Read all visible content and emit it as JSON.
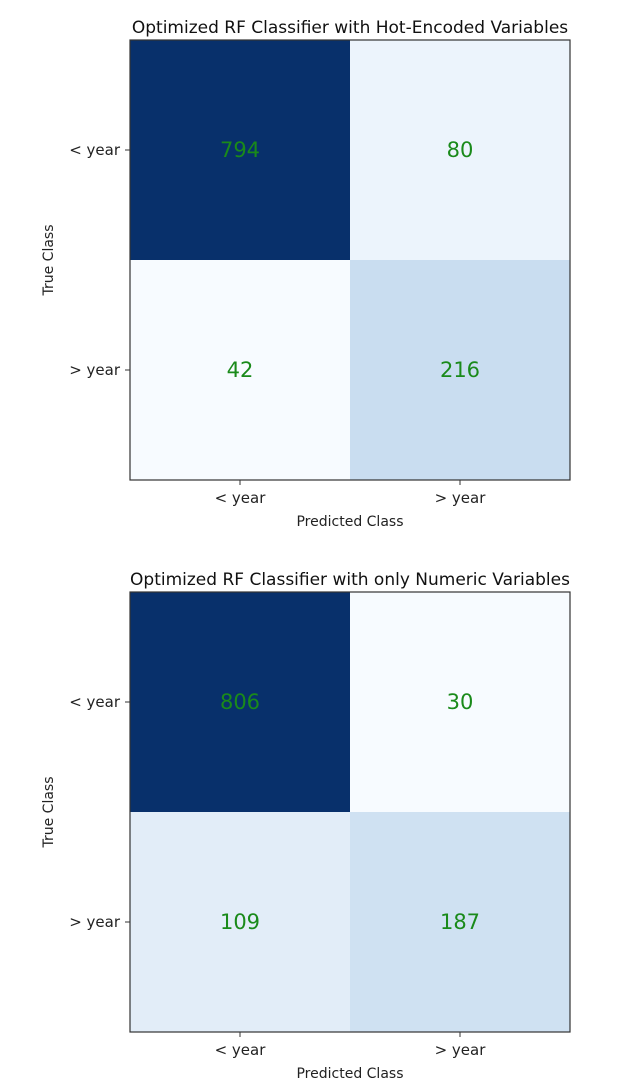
{
  "chart_data": [
    {
      "type": "heatmap",
      "title": "Optimized RF Classifier with Hot-Encoded Variables",
      "xlabel": "Predicted Class",
      "ylabel": "True Class",
      "x_categories": [
        "< year",
        "> year"
      ],
      "y_categories": [
        "< year",
        "> year"
      ],
      "values": [
        [
          794,
          80
        ],
        [
          42,
          216
        ]
      ],
      "colormap": "Blues",
      "annotation_color": "#1a8a1a",
      "grid": false,
      "legend": "none"
    },
    {
      "type": "heatmap",
      "title": "Optimized RF Classifier with only Numeric Variables",
      "xlabel": "Predicted Class",
      "ylabel": "True Class",
      "x_categories": [
        "< year",
        "> year"
      ],
      "y_categories": [
        "< year",
        "> year"
      ],
      "values": [
        [
          806,
          30
        ],
        [
          109,
          187
        ]
      ],
      "colormap": "Blues",
      "annotation_color": "#1a8a1a",
      "grid": false,
      "legend": "none"
    }
  ]
}
